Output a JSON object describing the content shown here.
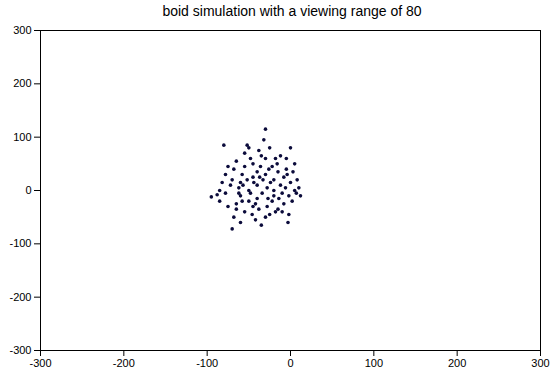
{
  "chart_data": {
    "type": "scatter",
    "title": "boid simulation with a viewing range of 80",
    "x": [
      -95,
      -88,
      -85,
      -80,
      -78,
      -75,
      -72,
      -70,
      -70,
      -68,
      -65,
      -65,
      -62,
      -60,
      -60,
      -58,
      -55,
      -55,
      -55,
      -52,
      -50,
      -50,
      -50,
      -48,
      -45,
      -45,
      -45,
      -42,
      -40,
      -40,
      -40,
      -38,
      -35,
      -35,
      -32,
      -30,
      -30,
      -30,
      -28,
      -28,
      -25,
      -25,
      -22,
      -20,
      -20,
      -18,
      -15,
      -15,
      -12,
      -10,
      -10,
      -8,
      -5,
      -5,
      -3,
      0,
      0,
      2,
      5,
      5,
      8,
      10,
      12,
      -2,
      -85,
      -82,
      -78,
      -75,
      -68,
      -62,
      -58,
      -52,
      -48,
      -46,
      -44,
      -38,
      -36,
      -34,
      -33,
      -30,
      -26,
      -24,
      -22,
      -20,
      -18,
      -16,
      -14,
      -12,
      -8,
      -6,
      -4,
      -2,
      3,
      7,
      -65,
      -60,
      -57,
      -42,
      -37,
      -27
    ],
    "y": [
      -12,
      -8,
      0,
      85,
      30,
      -30,
      10,
      -72,
      20,
      40,
      -25,
      -35,
      5,
      15,
      -10,
      30,
      45,
      -40,
      70,
      85,
      80,
      0,
      -20,
      60,
      50,
      25,
      -30,
      -55,
      35,
      10,
      -15,
      75,
      65,
      -65,
      95,
      115,
      60,
      30,
      5,
      -30,
      -45,
      80,
      45,
      20,
      -10,
      60,
      -35,
      35,
      10,
      -40,
      -5,
      25,
      60,
      40,
      -60,
      80,
      15,
      -20,
      50,
      0,
      20,
      5,
      -10,
      -10,
      -20,
      15,
      -5,
      45,
      -50,
      -5,
      -20,
      20,
      -5,
      -45,
      15,
      -35,
      45,
      -5,
      20,
      -50,
      40,
      15,
      -20,
      0,
      -40,
      50,
      -15,
      65,
      -25,
      5,
      30,
      -45,
      35,
      -5,
      55,
      -60,
      10,
      -25,
      25,
      -15
    ],
    "color": "#0b0b3b",
    "marker": "circle",
    "grid": false,
    "xlim": [
      -300,
      300
    ],
    "xticks": [
      -300,
      -200,
      -100,
      0,
      100,
      200,
      300
    ],
    "ylim": [
      -300,
      300
    ],
    "yticks": [
      -300,
      -200,
      -100,
      0,
      100,
      200,
      300
    ]
  }
}
